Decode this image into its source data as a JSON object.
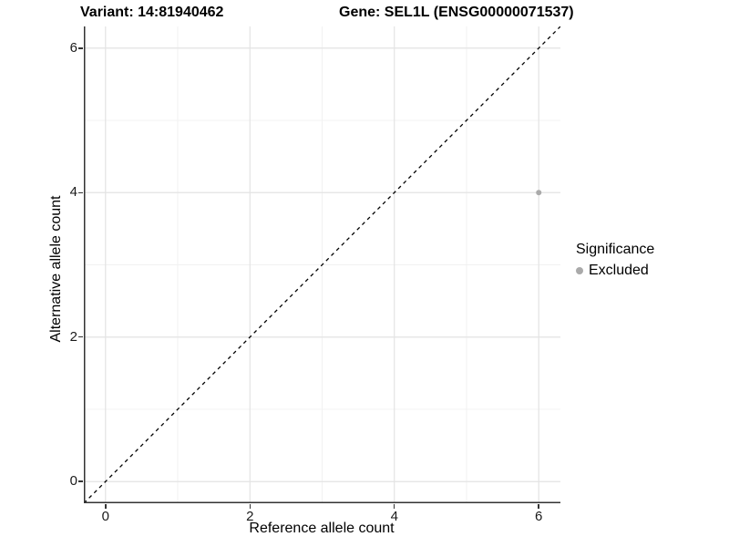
{
  "titles": {
    "variant": "Variant: 14:81940462",
    "gene": "Gene: SEL1L (ENSG00000071537)"
  },
  "axes": {
    "x_label": "Reference allele count",
    "y_label": "Alternative allele count"
  },
  "legend": {
    "title": "Significance",
    "items": [
      {
        "label": "Excluded",
        "color": "#aaaaaa"
      }
    ]
  },
  "colors": {
    "axis_line": "#333333",
    "tick_text": "#1a1a1a",
    "grid_major": "#e3e3e3",
    "grid_minor": "#f1f1f1",
    "identity_line": "#000000",
    "point": "#aaaaaa"
  },
  "chart_data": {
    "type": "scatter",
    "title": "Variant: 14:81940462   Gene: SEL1L (ENSG00000071537)",
    "xlabel": "Reference allele count",
    "ylabel": "Alternative allele count",
    "xlim": [
      -0.3,
      6.3
    ],
    "ylim": [
      -0.3,
      6.3
    ],
    "x_ticks": [
      0,
      2,
      4,
      6
    ],
    "y_ticks": [
      0,
      2,
      4,
      6
    ],
    "minor_gridlines": [
      1,
      3,
      5
    ],
    "grid": true,
    "legend_position": "right",
    "identity_line": {
      "style": "dashed",
      "color": "#000000",
      "from": [
        -0.3,
        -0.3
      ],
      "to": [
        6.3,
        6.3
      ]
    },
    "series": [
      {
        "name": "Excluded",
        "color": "#aaaaaa",
        "points": [
          {
            "x": 6,
            "y": 4
          }
        ]
      }
    ]
  }
}
